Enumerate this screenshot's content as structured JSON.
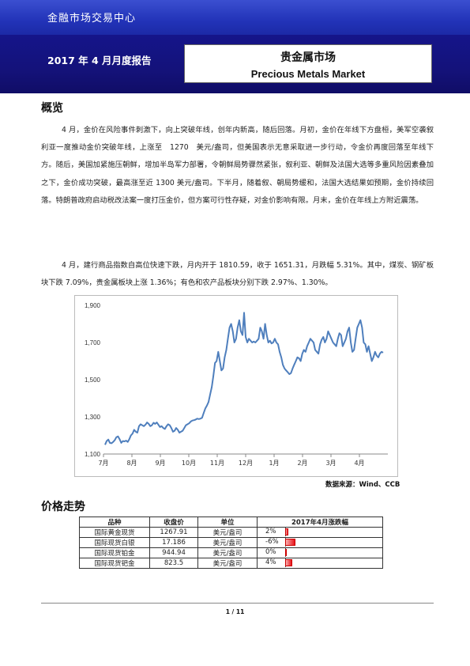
{
  "header": {
    "org_name": "金融市场交易中心",
    "report_label": "2017 年 4 月月度报告",
    "title_cn": "贵金属市场",
    "title_en": "Precious Metals Market"
  },
  "overview": {
    "heading": "概览",
    "para1": "4 月，金价在风险事件刺激下，向上突破年线，创年内新高，随后回落。月初，金价在年线下方盘桓，美军空袭叙利亚一度推动金价突破年线，上涨至　1270　美元/盎司，但美国表示无意采取进一步行动，令金价再度回落至年线下方。随后，美国加紧施压朝鲜，增加半岛军力部署，令朝鲜局势骤然紧张，叙利亚、朝鲜及法国大选等多重风险因素叠加之下，金价成功突破，最高涨至近 1300 美元/盎司。下半月，随着叙、朝局势缓和，法国大选结果如预期，金价持续回落。特朗普政府启动税改法案一度打压金价，但方案可行性存疑，对金价影响有限。月末，金价在年线上方附近震荡。",
    "para2": "4 月，建行商品指数自高位快速下跌，月内开于 1810.59，收于 1651.31，月跌幅 5.31%。其中，煤炭、钢矿板块下跌 7.09%，贵金属板块上涨 1.36%；有色和农产品板块分别下跌 2.97%、1.30%。"
  },
  "chart_data": {
    "type": "line",
    "x_tick_labels": [
      "7月",
      "8月",
      "9月",
      "10月",
      "11月",
      "12月",
      "1月",
      "2月",
      "3月",
      "4月"
    ],
    "y_ticks": [
      1100,
      1300,
      1500,
      1700,
      1900
    ],
    "ylim": [
      1100,
      1900
    ],
    "color": "#4f7fbd",
    "series": [
      {
        "values": [
          1150,
          1170,
          1178,
          1160,
          1158,
          1165,
          1175,
          1190,
          1195,
          1180,
          1160,
          1170,
          1168,
          1172,
          1165,
          1180,
          1200,
          1210,
          1230,
          1220,
          1215,
          1250,
          1260,
          1255,
          1250,
          1258,
          1270,
          1262,
          1250,
          1255,
          1268,
          1262,
          1270,
          1258,
          1245,
          1250,
          1240,
          1235,
          1250,
          1260,
          1255,
          1240,
          1220,
          1225,
          1240,
          1230,
          1215,
          1220,
          1225,
          1240,
          1255,
          1260,
          1265,
          1275,
          1280,
          1282,
          1285,
          1290,
          1288,
          1290,
          1295,
          1320,
          1345,
          1360,
          1380,
          1420,
          1460,
          1520,
          1590,
          1600,
          1650,
          1600,
          1550,
          1560,
          1620,
          1660,
          1720,
          1780,
          1800,
          1760,
          1700,
          1720,
          1780,
          1820,
          1760,
          1740,
          1860,
          1730,
          1700,
          1720,
          1710,
          1700,
          1705,
          1700,
          1710,
          1720,
          1780,
          1760,
          1720,
          1800,
          1740,
          1700,
          1710,
          1695,
          1700,
          1720,
          1700,
          1690,
          1650,
          1620,
          1580,
          1560,
          1550,
          1540,
          1530,
          1535,
          1560,
          1580,
          1600,
          1620,
          1615,
          1600,
          1640,
          1660,
          1650,
          1680,
          1700,
          1720,
          1710,
          1700,
          1660,
          1650,
          1640,
          1690,
          1715,
          1730,
          1700,
          1720,
          1760,
          1740,
          1720,
          1700,
          1690,
          1680,
          1720,
          1750,
          1740,
          1680,
          1700,
          1720,
          1760,
          1780,
          1700,
          1650,
          1660,
          1720,
          1780,
          1800,
          1820,
          1780,
          1700,
          1690,
          1650,
          1680,
          1640,
          1600,
          1620,
          1650,
          1630,
          1620,
          1640,
          1650,
          1645
        ]
      }
    ]
  },
  "source": "数据来源：Wind、CCB",
  "prices": {
    "heading": "价格走势",
    "headers": [
      "品种",
      "收盘价",
      "单位",
      "2017年4月涨跌幅"
    ],
    "rows": [
      {
        "name": "国际黄金现货",
        "close": "1267.91",
        "unit": "美元/盎司",
        "change_label": "2%",
        "change": 2.0
      },
      {
        "name": "国际现货白银",
        "close": "17.186",
        "unit": "美元/盎司",
        "change_label": "-6%",
        "change": -6.0
      },
      {
        "name": "国际现货铂金",
        "close": "944.94",
        "unit": "美元/盎司",
        "change_label": "0%",
        "change": 0.5
      },
      {
        "name": "国际现货钯金",
        "close": "823.5",
        "unit": "美元/盎司",
        "change_label": "4%",
        "change": 4.0
      }
    ],
    "bar_color": "#e8141b"
  },
  "footer": {
    "page": "1 / 11"
  }
}
